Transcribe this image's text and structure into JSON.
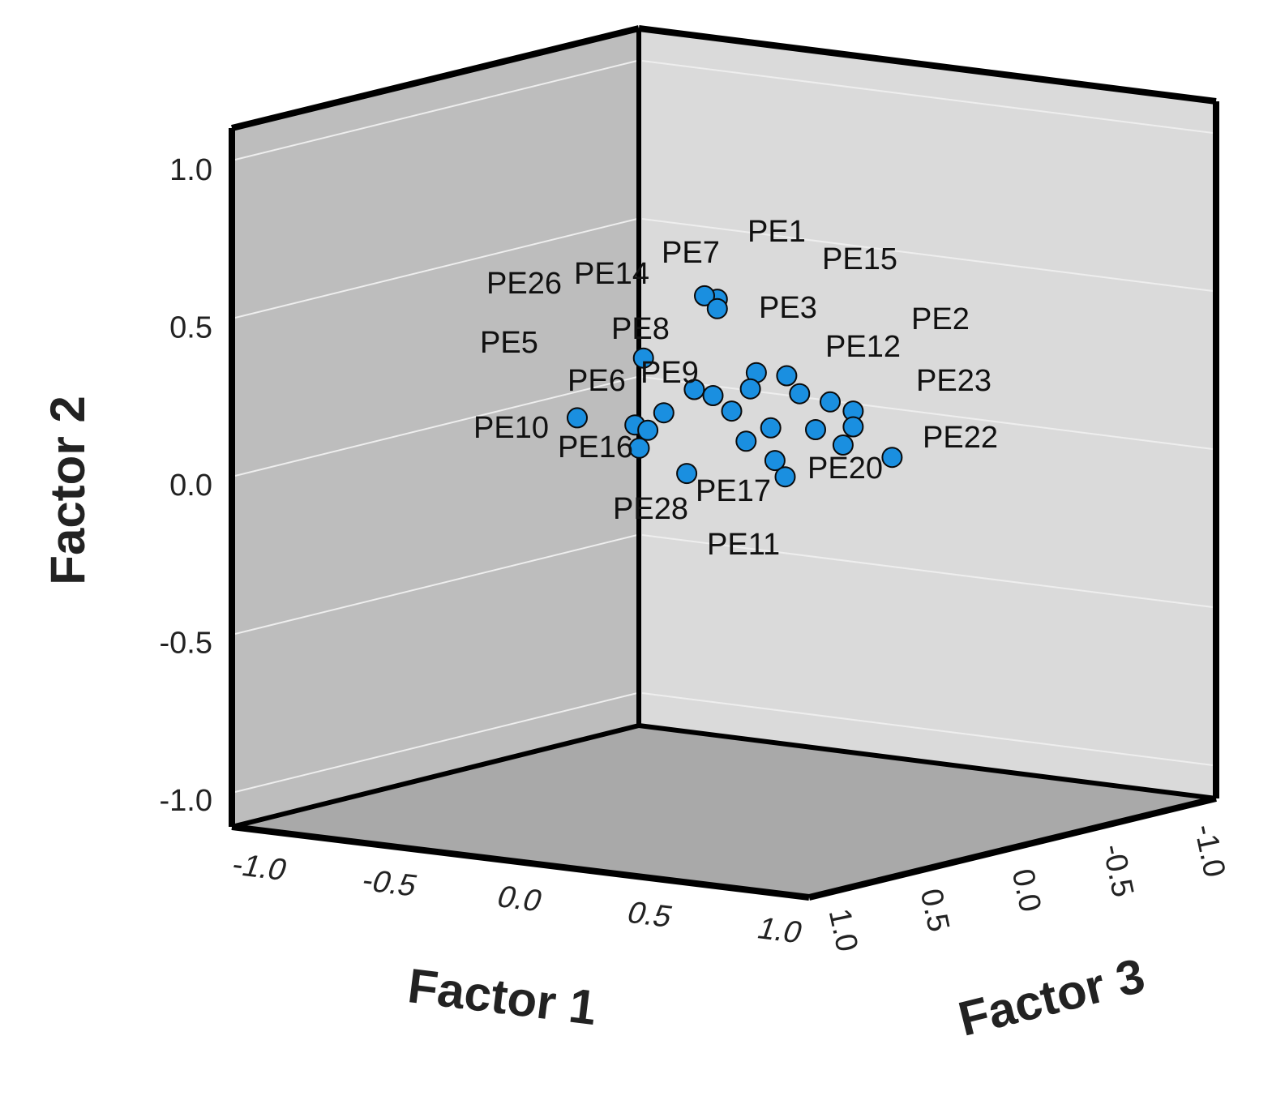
{
  "chart_data": {
    "type": "scatter",
    "projection": "3d",
    "title": "",
    "axes": {
      "x": {
        "label": "Factor 1",
        "range": [
          -1.0,
          1.0
        ],
        "ticks": [
          "-1.0",
          "-0.5",
          "0.0",
          "0.5",
          "1.0"
        ]
      },
      "y": {
        "label": "Factor 2",
        "range": [
          -1.0,
          1.0
        ],
        "ticks": [
          "-1.0",
          "-0.5",
          "0.0",
          "0.5",
          "1.0"
        ]
      },
      "z": {
        "label": "Factor 3",
        "range": [
          -1.0,
          1.0
        ],
        "ticks": [
          "1.0",
          "0.5",
          "0.0",
          "-0.5",
          "-1.0"
        ]
      }
    },
    "grid": true,
    "colors": {
      "point": "#1a8fe0",
      "point_edge": "#0a0a0a",
      "wall_left": "#bdbdbd",
      "wall_back": "#dadada",
      "floor": "#a9a9a9",
      "grid": "#eeeeee",
      "frame": "#000000"
    },
    "labels": [
      "PE1",
      "PE15",
      "PE7",
      "PE14",
      "PE26",
      "PE3",
      "PE2",
      "PE8",
      "PE5",
      "PE12",
      "PE9",
      "PE6",
      "PE23",
      "PE10",
      "PE16",
      "PE22",
      "PE20",
      "PE17",
      "PE28",
      "PE11"
    ],
    "points": [
      {
        "x": 0.45,
        "y": 0.62,
        "z": -0.05
      },
      {
        "x": 0.3,
        "y": 0.59,
        "z": -0.2
      },
      {
        "x": 0.45,
        "y": 0.59,
        "z": -0.05
      },
      {
        "x": 0.3,
        "y": 0.44,
        "z": 0.1
      },
      {
        "x": 0.55,
        "y": 0.39,
        "z": -0.1
      },
      {
        "x": 0.62,
        "y": 0.38,
        "z": -0.15
      },
      {
        "x": 0.6,
        "y": 0.36,
        "z": 0.0
      },
      {
        "x": 0.7,
        "y": 0.34,
        "z": -0.1
      },
      {
        "x": 0.3,
        "y": 0.3,
        "z": -0.15
      },
      {
        "x": 0.4,
        "y": 0.3,
        "z": -0.1
      },
      {
        "x": 0.5,
        "y": 0.27,
        "z": -0.05
      },
      {
        "x": 0.7,
        "y": 0.29,
        "z": -0.25
      },
      {
        "x": 0.78,
        "y": 0.27,
        "z": -0.25
      },
      {
        "x": 0.3,
        "y": 0.25,
        "z": 0.0
      },
      {
        "x": 0.6,
        "y": 0.22,
        "z": -0.1
      },
      {
        "x": 0.72,
        "y": 0.22,
        "z": -0.15
      },
      {
        "x": 0.78,
        "y": 0.22,
        "z": -0.25
      },
      {
        "x": 0.0,
        "y": 0.2,
        "z": 0.0
      },
      {
        "x": 0.2,
        "y": 0.2,
        "z": 0.0
      },
      {
        "x": 0.28,
        "y": 0.2,
        "z": 0.05
      },
      {
        "x": 0.55,
        "y": 0.18,
        "z": -0.05
      },
      {
        "x": 0.78,
        "y": 0.17,
        "z": -0.2
      },
      {
        "x": 0.95,
        "y": 0.15,
        "z": -0.2
      },
      {
        "x": 0.25,
        "y": 0.14,
        "z": 0.05
      },
      {
        "x": 0.65,
        "y": 0.13,
        "z": -0.05
      },
      {
        "x": 0.45,
        "y": 0.09,
        "z": 0.1
      },
      {
        "x": 0.65,
        "y": 0.07,
        "z": -0.1
      }
    ]
  }
}
